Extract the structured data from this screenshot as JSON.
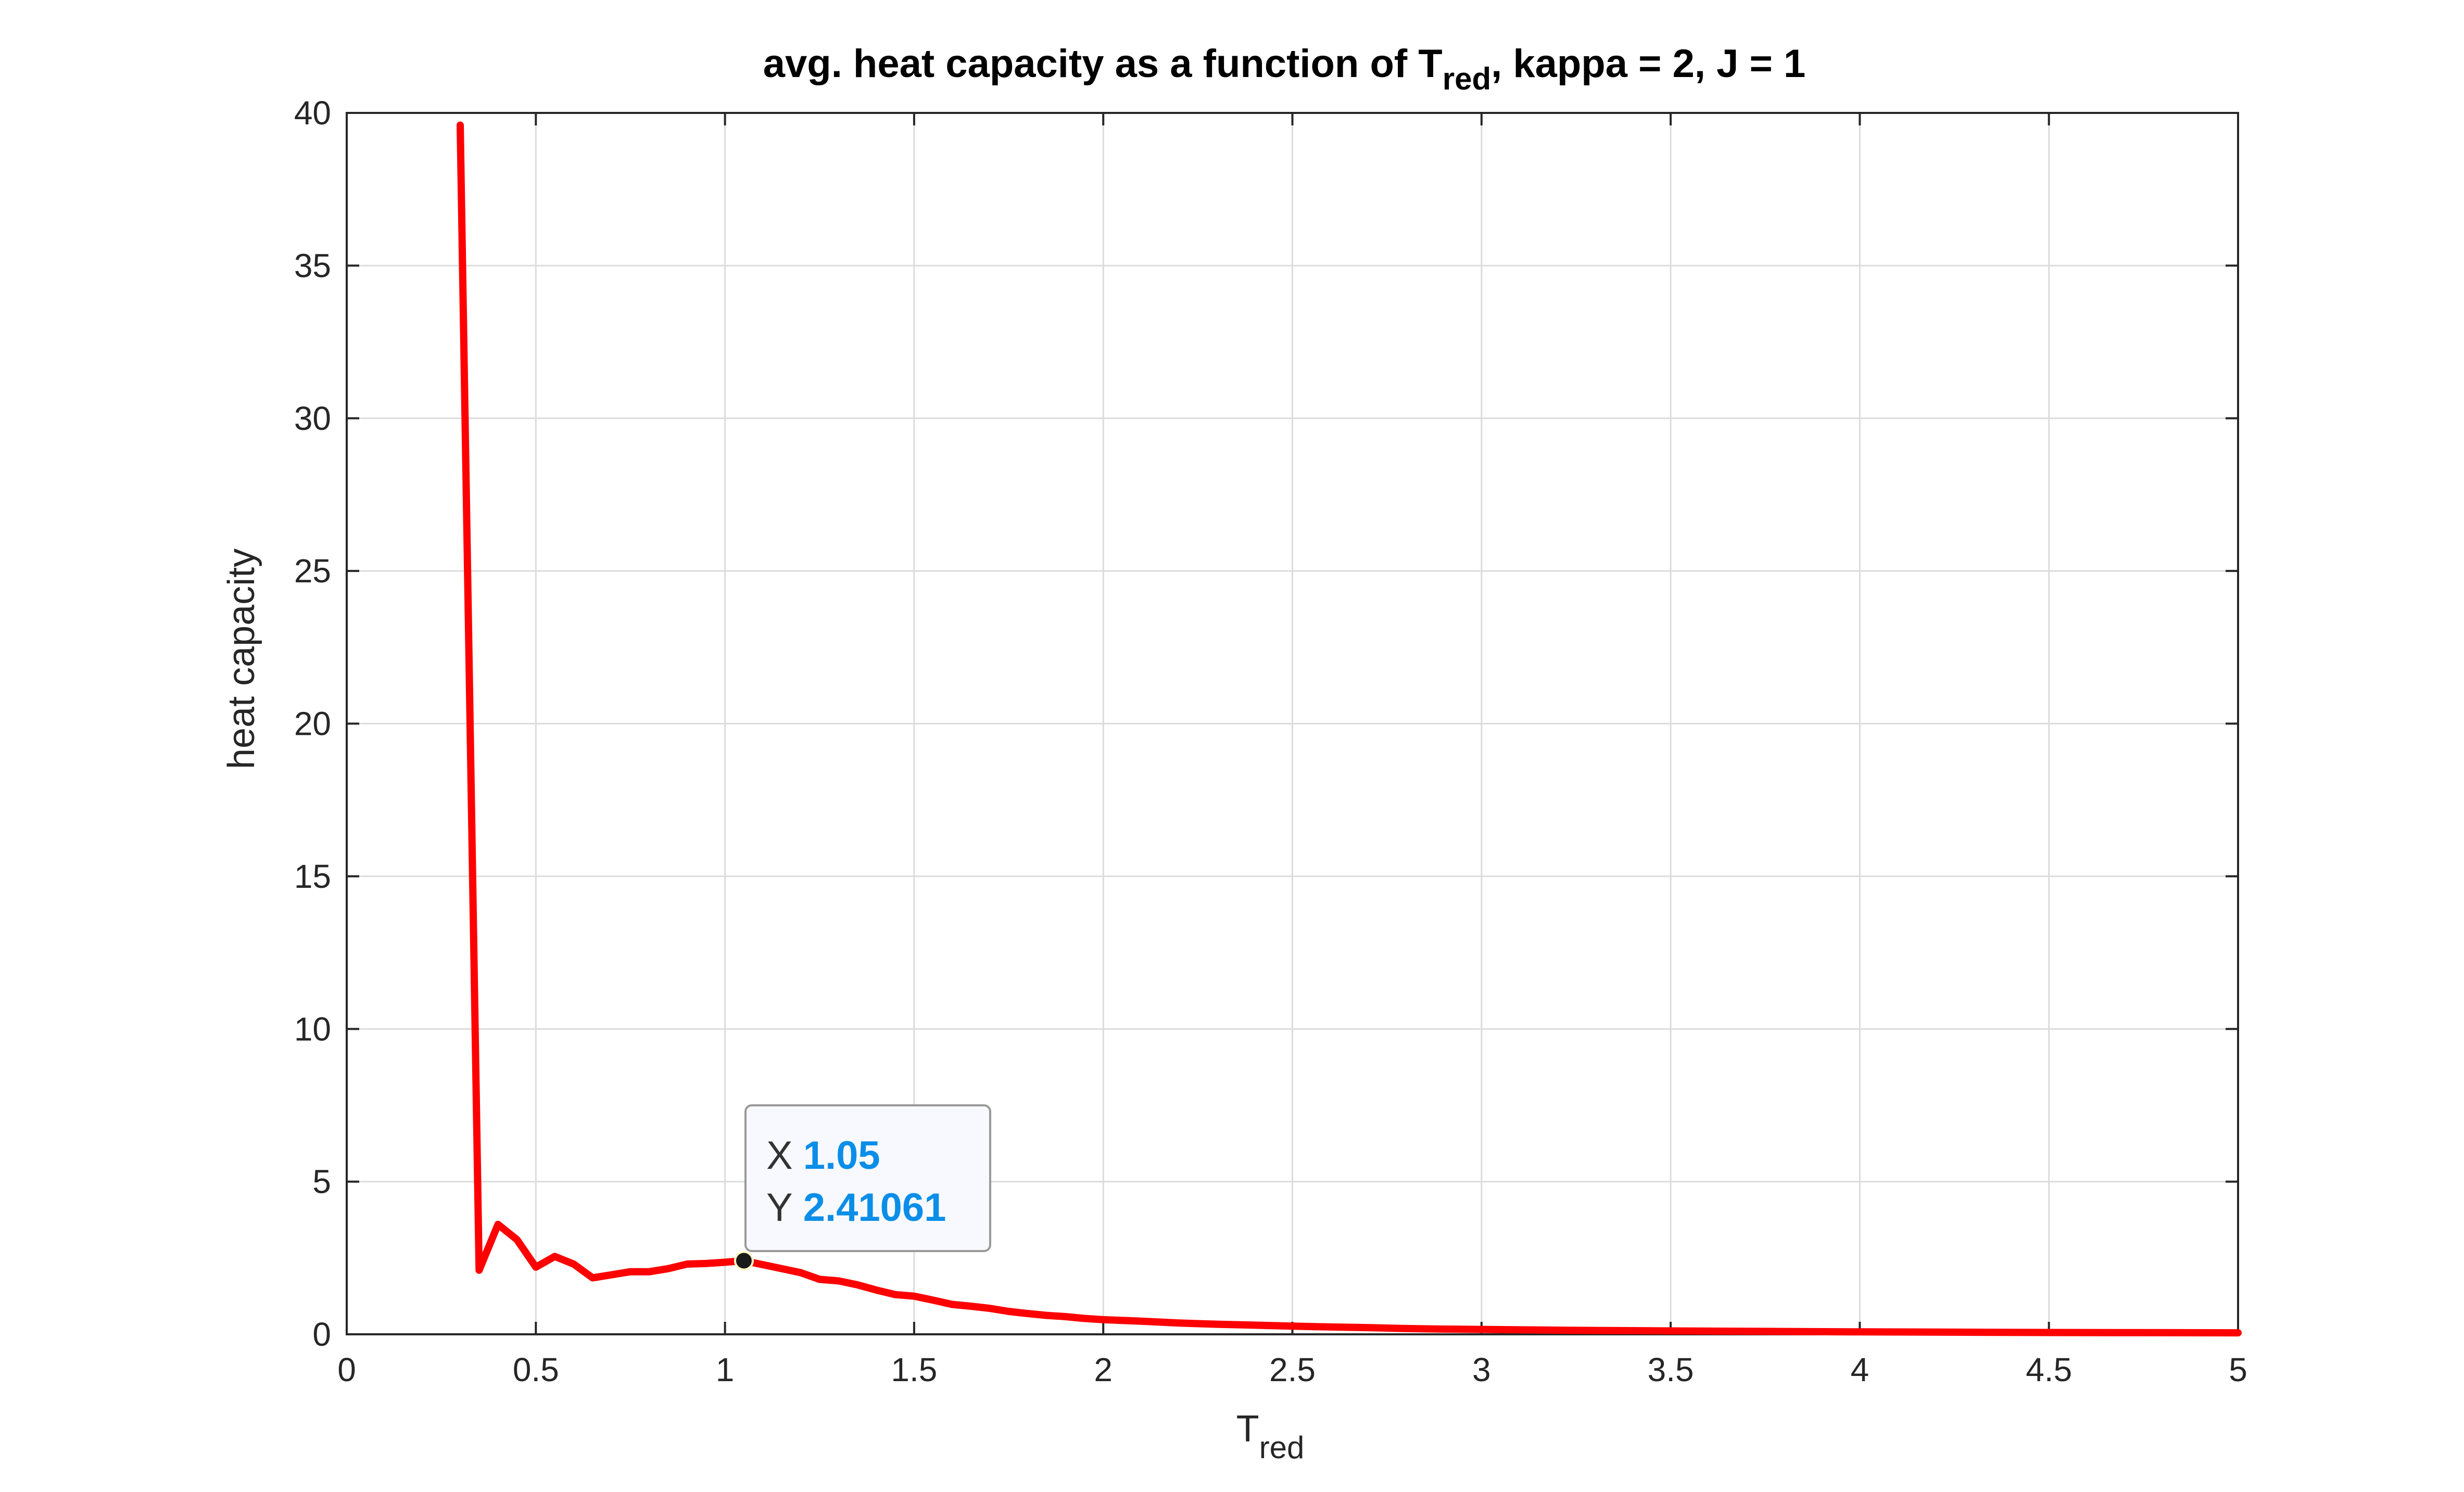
{
  "chart_data": {
    "type": "line",
    "title": {
      "main": "avg. heat capacity as a function of T",
      "sub": "red",
      "rest": ", kappa = 2, J = 1"
    },
    "xlabel": {
      "main": "T",
      "sub": "red"
    },
    "ylabel": "heat capacity",
    "xlim": [
      0,
      5
    ],
    "ylim": [
      0,
      40
    ],
    "xticks": [
      "0",
      "0.5",
      "1",
      "1.5",
      "2",
      "2.5",
      "3",
      "3.5",
      "4",
      "4.5",
      "5"
    ],
    "yticks": [
      "0",
      "5",
      "10",
      "15",
      "20",
      "25",
      "30",
      "35",
      "40"
    ],
    "grid": true,
    "line_color": "#ff0000",
    "series": [
      {
        "x": [
          0.3,
          0.35,
          0.4,
          0.45,
          0.5,
          0.55,
          0.6,
          0.65,
          0.7,
          0.75,
          0.8,
          0.85,
          0.9,
          0.95,
          1.0,
          1.05,
          1.1,
          1.15,
          1.2,
          1.25,
          1.3,
          1.35,
          1.4,
          1.45,
          1.5,
          1.55,
          1.6,
          1.65,
          1.7,
          1.75,
          1.8,
          1.85,
          1.9,
          1.95,
          2.0,
          2.1,
          2.2,
          2.3,
          2.4,
          2.5,
          2.6,
          2.7,
          2.8,
          2.9,
          3.0,
          3.25,
          3.5,
          3.75,
          4.0,
          4.25,
          4.5,
          4.75,
          5.0
        ],
        "y": [
          39.6,
          2.1,
          3.6,
          3.1,
          2.2,
          2.55,
          2.3,
          1.85,
          1.95,
          2.05,
          2.05,
          2.15,
          2.3,
          2.32,
          2.36,
          2.41,
          2.28,
          2.15,
          2.02,
          1.8,
          1.75,
          1.62,
          1.45,
          1.3,
          1.25,
          1.12,
          0.98,
          0.92,
          0.85,
          0.75,
          0.68,
          0.62,
          0.58,
          0.52,
          0.48,
          0.43,
          0.37,
          0.33,
          0.3,
          0.27,
          0.24,
          0.22,
          0.19,
          0.17,
          0.16,
          0.13,
          0.11,
          0.095,
          0.08,
          0.07,
          0.06,
          0.055,
          0.05
        ]
      }
    ],
    "datatip": {
      "x_key": "X",
      "x_value": "1.05",
      "y_key": "Y",
      "y_value": "2.41061",
      "point": [
        1.05,
        2.41061
      ],
      "value_color": "#0a8ee8"
    }
  }
}
